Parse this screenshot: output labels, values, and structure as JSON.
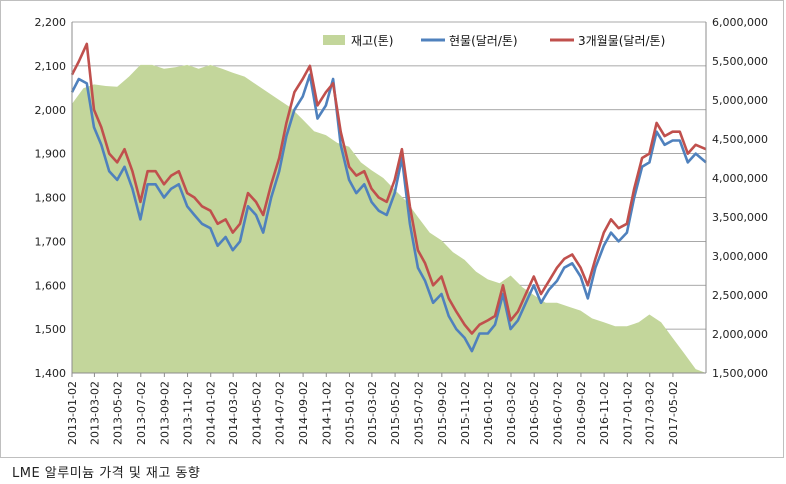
{
  "caption": "LME 알루미늄 가격 및 재고 동향",
  "chart_data": {
    "type": "line",
    "title": "",
    "xlabel": "",
    "ylabel": "",
    "y_left": {
      "range": [
        1400,
        2200
      ],
      "ticks": [
        "1,400",
        "1,500",
        "1,600",
        "1,700",
        "1,800",
        "1,900",
        "2,000",
        "2,100",
        "2,200"
      ],
      "tick_values": [
        1400,
        1500,
        1600,
        1700,
        1800,
        1900,
        2000,
        2100,
        2200
      ]
    },
    "y_right": {
      "range": [
        1500000,
        6000000
      ],
      "ticks": [
        "1,500,000",
        "2,000,000",
        "2,500,000",
        "3,000,000",
        "3,500,000",
        "4,000,000",
        "4,500,000",
        "5,000,000",
        "5,500,000",
        "6,000,000"
      ],
      "tick_values": [
        1500000,
        2000000,
        2500000,
        3000000,
        3500000,
        4000000,
        4500000,
        5000000,
        5500000,
        6000000
      ]
    },
    "x_range": [
      "2013-01-02",
      "2017-07-28"
    ],
    "x_tick_labels": [
      "2013-01-02",
      "2013-03-02",
      "2013-05-02",
      "2013-07-02",
      "2013-09-02",
      "2013-11-02",
      "2014-01-02",
      "2014-03-02",
      "2014-05-02",
      "2014-07-02",
      "2014-09-02",
      "2014-11-02",
      "2015-01-02",
      "2015-03-02",
      "2015-05-02",
      "2015-07-02",
      "2015-09-02",
      "2015-11-02",
      "2016-01-02",
      "2016-03-02",
      "2016-05-02",
      "2016-07-02",
      "2016-09-02",
      "2016-11-02",
      "2017-01-02",
      "2017-03-02",
      "2017-05-02"
    ],
    "grid": true,
    "legend_position": "top",
    "series": [
      {
        "name": "재고(톤)",
        "kind": "area",
        "axis": "right",
        "color": "#c3d69b",
        "x": [
          "2013-01-02",
          "2013-02-01",
          "2013-03-01",
          "2013-04-01",
          "2013-05-01",
          "2013-06-01",
          "2013-07-01",
          "2013-08-01",
          "2013-09-01",
          "2013-10-01",
          "2013-11-01",
          "2013-12-01",
          "2014-01-01",
          "2014-02-01",
          "2014-03-01",
          "2014-04-01",
          "2014-05-01",
          "2014-06-01",
          "2014-07-01",
          "2014-08-01",
          "2014-09-01",
          "2014-10-01",
          "2014-11-01",
          "2014-12-01",
          "2015-01-01",
          "2015-02-01",
          "2015-03-01",
          "2015-04-01",
          "2015-05-01",
          "2015-06-01",
          "2015-07-01",
          "2015-08-01",
          "2015-09-01",
          "2015-10-01",
          "2015-11-01",
          "2015-12-01",
          "2016-01-01",
          "2016-02-01",
          "2016-03-01",
          "2016-04-01",
          "2016-05-01",
          "2016-06-01",
          "2016-07-01",
          "2016-08-01",
          "2016-09-01",
          "2016-10-01",
          "2016-11-01",
          "2016-12-01",
          "2017-01-01",
          "2017-02-01",
          "2017-03-01",
          "2017-04-01",
          "2017-05-01",
          "2017-06-01",
          "2017-07-01",
          "2017-07-28"
        ],
        "values": [
          4950000,
          5150000,
          5200000,
          5180000,
          5170000,
          5300000,
          5450000,
          5450000,
          5400000,
          5420000,
          5450000,
          5400000,
          5450000,
          5400000,
          5350000,
          5300000,
          5200000,
          5100000,
          5000000,
          4900000,
          4750000,
          4600000,
          4550000,
          4450000,
          4400000,
          4200000,
          4100000,
          4000000,
          3850000,
          3700000,
          3500000,
          3300000,
          3200000,
          3050000,
          2950000,
          2800000,
          2700000,
          2650000,
          2750000,
          2600000,
          2500000,
          2400000,
          2400000,
          2350000,
          2300000,
          2200000,
          2150000,
          2100000,
          2100000,
          2150000,
          2250000,
          2150000,
          1950000,
          1750000,
          1550000,
          1500000
        ]
      },
      {
        "name": "현물(달러/톤)",
        "kind": "line",
        "axis": "left",
        "color": "#4f81bd",
        "x": [
          "2013-01-02",
          "2013-01-20",
          "2013-02-10",
          "2013-03-01",
          "2013-03-20",
          "2013-04-10",
          "2013-05-01",
          "2013-05-20",
          "2013-06-10",
          "2013-07-01",
          "2013-07-20",
          "2013-08-10",
          "2013-09-01",
          "2013-09-20",
          "2013-10-10",
          "2013-11-01",
          "2013-11-20",
          "2013-12-10",
          "2014-01-01",
          "2014-01-20",
          "2014-02-10",
          "2014-03-01",
          "2014-03-20",
          "2014-04-10",
          "2014-05-01",
          "2014-05-20",
          "2014-06-10",
          "2014-07-01",
          "2014-07-20",
          "2014-08-10",
          "2014-09-01",
          "2014-09-20",
          "2014-10-10",
          "2014-11-01",
          "2014-11-20",
          "2014-12-10",
          "2015-01-01",
          "2015-01-20",
          "2015-02-10",
          "2015-03-01",
          "2015-03-20",
          "2015-04-10",
          "2015-05-01",
          "2015-05-20",
          "2015-06-10",
          "2015-07-01",
          "2015-07-20",
          "2015-08-10",
          "2015-09-01",
          "2015-09-20",
          "2015-10-10",
          "2015-11-01",
          "2015-11-20",
          "2015-12-10",
          "2016-01-01",
          "2016-01-20",
          "2016-02-10",
          "2016-03-01",
          "2016-03-20",
          "2016-04-10",
          "2016-05-01",
          "2016-05-20",
          "2016-06-10",
          "2016-07-01",
          "2016-07-20",
          "2016-08-10",
          "2016-09-01",
          "2016-09-20",
          "2016-10-10",
          "2016-11-01",
          "2016-11-20",
          "2016-12-10",
          "2017-01-01",
          "2017-01-20",
          "2017-02-10",
          "2017-03-01",
          "2017-03-20",
          "2017-04-10",
          "2017-05-01",
          "2017-05-20",
          "2017-06-10",
          "2017-07-01",
          "2017-07-28"
        ],
        "values": [
          2040,
          2070,
          2060,
          1960,
          1920,
          1860,
          1840,
          1870,
          1820,
          1750,
          1830,
          1830,
          1800,
          1820,
          1830,
          1780,
          1760,
          1740,
          1730,
          1690,
          1710,
          1680,
          1700,
          1780,
          1760,
          1720,
          1800,
          1860,
          1940,
          2000,
          2030,
          2080,
          1980,
          2010,
          2070,
          1920,
          1840,
          1810,
          1830,
          1790,
          1770,
          1760,
          1810,
          1890,
          1740,
          1640,
          1610,
          1560,
          1580,
          1530,
          1500,
          1480,
          1450,
          1490,
          1490,
          1510,
          1580,
          1500,
          1520,
          1560,
          1600,
          1560,
          1590,
          1610,
          1640,
          1650,
          1620,
          1570,
          1640,
          1690,
          1720,
          1700,
          1720,
          1800,
          1870,
          1880,
          1950,
          1920,
          1930,
          1930,
          1880,
          1900,
          1880
        ]
      },
      {
        "name": "3개월물(달러/톤)",
        "kind": "line",
        "axis": "left",
        "color": "#c0504d",
        "x": [
          "2013-01-02",
          "2013-01-20",
          "2013-02-10",
          "2013-03-01",
          "2013-03-20",
          "2013-04-10",
          "2013-05-01",
          "2013-05-20",
          "2013-06-10",
          "2013-07-01",
          "2013-07-20",
          "2013-08-10",
          "2013-09-01",
          "2013-09-20",
          "2013-10-10",
          "2013-11-01",
          "2013-11-20",
          "2013-12-10",
          "2014-01-01",
          "2014-01-20",
          "2014-02-10",
          "2014-03-01",
          "2014-03-20",
          "2014-04-10",
          "2014-05-01",
          "2014-05-20",
          "2014-06-10",
          "2014-07-01",
          "2014-07-20",
          "2014-08-10",
          "2014-09-01",
          "2014-09-20",
          "2014-10-10",
          "2014-11-01",
          "2014-11-20",
          "2014-12-10",
          "2015-01-01",
          "2015-01-20",
          "2015-02-10",
          "2015-03-01",
          "2015-03-20",
          "2015-04-10",
          "2015-05-01",
          "2015-05-20",
          "2015-06-10",
          "2015-07-01",
          "2015-07-20",
          "2015-08-10",
          "2015-09-01",
          "2015-09-20",
          "2015-10-10",
          "2015-11-01",
          "2015-11-20",
          "2015-12-10",
          "2016-01-01",
          "2016-01-20",
          "2016-02-10",
          "2016-03-01",
          "2016-03-20",
          "2016-04-10",
          "2016-05-01",
          "2016-05-20",
          "2016-06-10",
          "2016-07-01",
          "2016-07-20",
          "2016-08-10",
          "2016-09-01",
          "2016-09-20",
          "2016-10-10",
          "2016-11-01",
          "2016-11-20",
          "2016-12-10",
          "2017-01-01",
          "2017-01-20",
          "2017-02-10",
          "2017-03-01",
          "2017-03-20",
          "2017-04-10",
          "2017-05-01",
          "2017-05-20",
          "2017-06-10",
          "2017-07-01",
          "2017-07-28"
        ],
        "values": [
          2080,
          2110,
          2150,
          2000,
          1960,
          1900,
          1880,
          1910,
          1860,
          1790,
          1860,
          1860,
          1830,
          1850,
          1860,
          1810,
          1800,
          1780,
          1770,
          1740,
          1750,
          1720,
          1740,
          1810,
          1790,
          1760,
          1830,
          1890,
          1970,
          2040,
          2070,
          2100,
          2010,
          2040,
          2060,
          1950,
          1870,
          1850,
          1860,
          1820,
          1800,
          1790,
          1840,
          1910,
          1780,
          1680,
          1650,
          1600,
          1620,
          1570,
          1540,
          1510,
          1490,
          1510,
          1520,
          1530,
          1600,
          1520,
          1540,
          1580,
          1620,
          1580,
          1610,
          1640,
          1660,
          1670,
          1640,
          1600,
          1660,
          1720,
          1750,
          1730,
          1740,
          1820,
          1890,
          1900,
          1970,
          1940,
          1950,
          1950,
          1900,
          1920,
          1910
        ]
      }
    ]
  }
}
